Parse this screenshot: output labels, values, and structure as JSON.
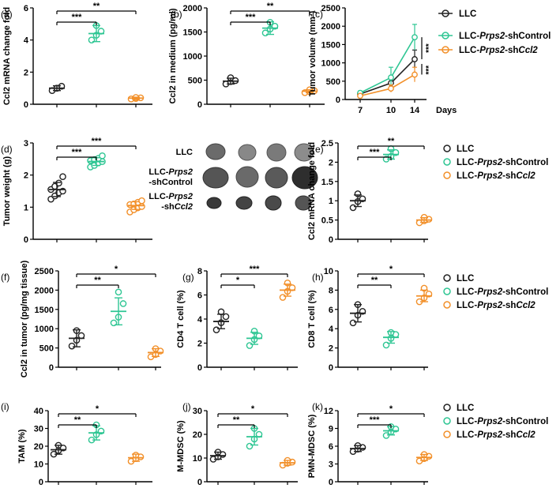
{
  "figure_colors": {
    "LLC": "#222222",
    "shControl": "#2ec693",
    "shCcl2": "#f2902a",
    "axis": "#000000"
  },
  "legend": {
    "LLC": "LLC",
    "shControl": {
      "a": "LLC-",
      "b": "Prps2",
      "c": "-shControl"
    },
    "shCcl2": {
      "a": "LLC-",
      "b": "Prps2",
      "c": "-sh",
      "d": "Ccl2"
    }
  },
  "photo": {
    "row1": "LLC",
    "row2_a": "LLC-",
    "row2_b": "Prps2",
    "row2_c": "-shControl",
    "row3_a": "LLC-",
    "row3_b": "Prps2",
    "row3_c": "-sh",
    "row3_d": "Ccl2"
  },
  "chart_data": [
    {
      "id": "a",
      "panel_label": "(a)",
      "type": "scatter",
      "ylabel": "Ccl2 mRNA change fold",
      "yticks": [
        0,
        2,
        4,
        6
      ],
      "ylim": [
        0,
        6
      ],
      "groups": [
        {
          "name": "LLC",
          "mean": 1.0,
          "sd": 0.15,
          "points": [
            0.85,
            1.0,
            1.12,
            1.0
          ]
        },
        {
          "name": "LLC-Prps2-shControl",
          "mean": 4.4,
          "sd": 0.5,
          "points": [
            4.0,
            4.3,
            4.55,
            4.9
          ]
        },
        {
          "name": "LLC-Prps2-shCcl2",
          "mean": 0.38,
          "sd": 0.06,
          "points": [
            0.33,
            0.36,
            0.4,
            0.42
          ]
        }
      ],
      "significance": [
        {
          "from": 0,
          "to": 1,
          "label": "***"
        },
        {
          "from": 0,
          "to": 2,
          "label": "**"
        }
      ]
    },
    {
      "id": "b",
      "panel_label": "(b)",
      "type": "scatter",
      "ylabel": "Ccl2 in medium (pg/ml)",
      "yticks": [
        0,
        500,
        1000,
        1500,
        2000
      ],
      "ylim": [
        0,
        2000
      ],
      "groups": [
        {
          "name": "LLC",
          "mean": 480,
          "sd": 60,
          "points": [
            420,
            470,
            490,
            550
          ]
        },
        {
          "name": "LLC-Prps2-shControl",
          "mean": 1580,
          "sd": 130,
          "points": [
            1480,
            1560,
            1620,
            1700
          ]
        },
        {
          "name": "LLC-Prps2-shCcl2",
          "mean": 270,
          "sd": 30,
          "points": [
            240,
            260,
            280,
            300
          ]
        }
      ],
      "significance": [
        {
          "from": 0,
          "to": 1,
          "label": "***"
        },
        {
          "from": 0,
          "to": 2,
          "label": "**"
        }
      ]
    },
    {
      "id": "c",
      "panel_label": "(c)",
      "type": "line",
      "ylabel": "Tumor volume (mm³)",
      "xlabel": "Days",
      "x": [
        7,
        10,
        14
      ],
      "yticks": [
        0,
        500,
        1000,
        1500,
        2000,
        2500
      ],
      "ylim": [
        0,
        2500
      ],
      "series": [
        {
          "name": "LLC",
          "values": [
            150,
            450,
            1100
          ],
          "err": [
            40,
            150,
            250
          ]
        },
        {
          "name": "LLC-Prps2-shControl",
          "values": [
            180,
            600,
            1700
          ],
          "err": [
            50,
            280,
            350
          ]
        },
        {
          "name": "LLC-Prps2-shCcl2",
          "values": [
            100,
            300,
            680
          ],
          "err": [
            30,
            100,
            200
          ]
        }
      ],
      "significance": [
        {
          "label": "***"
        },
        {
          "label": "***"
        }
      ]
    },
    {
      "id": "d",
      "panel_label": "(d)",
      "type": "scatter",
      "ylabel": "Tumor weight (g)",
      "yticks": [
        0,
        1,
        2,
        3
      ],
      "ylim": [
        0,
        3
      ],
      "groups": [
        {
          "name": "LLC",
          "mean": 1.55,
          "sd": 0.22,
          "points": [
            1.25,
            1.35,
            1.45,
            1.5,
            1.55,
            1.65,
            1.75,
            1.95
          ]
        },
        {
          "name": "LLC-Prps2-shControl",
          "mean": 2.42,
          "sd": 0.12,
          "points": [
            2.25,
            2.3,
            2.38,
            2.42,
            2.45,
            2.48,
            2.52,
            2.6
          ]
        },
        {
          "name": "LLC-Prps2-shCcl2",
          "mean": 1.05,
          "sd": 0.12,
          "points": [
            0.85,
            0.92,
            0.98,
            1.02,
            1.08,
            1.1,
            1.15,
            1.2
          ]
        }
      ],
      "significance": [
        {
          "from": 0,
          "to": 1,
          "label": "***"
        },
        {
          "from": 0,
          "to": 2,
          "label": "***"
        }
      ]
    },
    {
      "id": "e",
      "panel_label": "(e)",
      "type": "scatter",
      "ylabel": "Ccl2 mRNA change fold",
      "yticks": [
        0.0,
        0.5,
        1.0,
        1.5,
        2.0,
        2.5
      ],
      "ylim": [
        0,
        2.5
      ],
      "groups": [
        {
          "name": "LLC",
          "mean": 1.0,
          "sd": 0.15,
          "points": [
            0.82,
            0.98,
            1.05,
            1.18
          ]
        },
        {
          "name": "LLC-Prps2-shControl",
          "mean": 2.2,
          "sd": 0.12,
          "points": [
            2.08,
            2.15,
            2.25,
            2.35
          ]
        },
        {
          "name": "LLC-Prps2-shCcl2",
          "mean": 0.5,
          "sd": 0.06,
          "points": [
            0.43,
            0.48,
            0.52,
            0.57
          ]
        }
      ],
      "significance": [
        {
          "from": 0,
          "to": 1,
          "label": "***"
        },
        {
          "from": 0,
          "to": 2,
          "label": "**"
        }
      ]
    },
    {
      "id": "f",
      "panel_label": "(f)",
      "type": "scatter",
      "ylabel": "Ccl2 in tumor (pg/mg tissue)",
      "yticks": [
        0,
        500,
        1000,
        1500,
        2000,
        2500
      ],
      "ylim": [
        0,
        2500
      ],
      "groups": [
        {
          "name": "LLC",
          "mean": 750,
          "sd": 220,
          "points": [
            550,
            700,
            820,
            950
          ]
        },
        {
          "name": "LLC-Prps2-shControl",
          "mean": 1450,
          "sd": 350,
          "points": [
            1150,
            1300,
            1650,
            1950
          ]
        },
        {
          "name": "LLC-Prps2-shCcl2",
          "mean": 380,
          "sd": 100,
          "points": [
            270,
            330,
            420,
            480
          ]
        }
      ],
      "significance": [
        {
          "from": 0,
          "to": 1,
          "label": "**"
        },
        {
          "from": 0,
          "to": 2,
          "label": "*"
        }
      ]
    },
    {
      "id": "g",
      "panel_label": "(g)",
      "type": "scatter",
      "ylabel": "CD4 T cell (%)",
      "yticks": [
        0,
        2,
        4,
        6,
        8
      ],
      "ylim": [
        0,
        8
      ],
      "groups": [
        {
          "name": "LLC",
          "mean": 3.8,
          "sd": 0.6,
          "points": [
            3.1,
            3.7,
            4.2,
            4.6
          ]
        },
        {
          "name": "LLC-Prps2-shControl",
          "mean": 2.4,
          "sd": 0.5,
          "points": [
            1.8,
            2.3,
            2.6,
            3.0
          ]
        },
        {
          "name": "LLC-Prps2-shCcl2",
          "mean": 6.4,
          "sd": 0.5,
          "points": [
            5.8,
            6.3,
            6.6,
            7.0
          ]
        }
      ],
      "significance": [
        {
          "from": 0,
          "to": 1,
          "label": "*"
        },
        {
          "from": 0,
          "to": 2,
          "label": "***"
        }
      ]
    },
    {
      "id": "h",
      "panel_label": "(h)",
      "type": "scatter",
      "ylabel": "CD8 T cell (%)",
      "yticks": [
        0,
        2,
        4,
        6,
        8,
        10
      ],
      "ylim": [
        0,
        10
      ],
      "groups": [
        {
          "name": "LLC",
          "mean": 5.6,
          "sd": 0.9,
          "points": [
            4.6,
            5.4,
            5.8,
            6.5
          ]
        },
        {
          "name": "LLC-Prps2-shControl",
          "mean": 3.1,
          "sd": 0.6,
          "points": [
            2.3,
            3.0,
            3.4,
            3.6
          ]
        },
        {
          "name": "LLC-Prps2-shCcl2",
          "mean": 7.4,
          "sd": 0.6,
          "points": [
            6.8,
            7.2,
            7.6,
            8.2
          ]
        }
      ],
      "significance": [
        {
          "from": 0,
          "to": 1,
          "label": "**"
        },
        {
          "from": 0,
          "to": 2,
          "label": "*"
        }
      ]
    },
    {
      "id": "i",
      "panel_label": "(i)",
      "type": "scatter",
      "ylabel": "TAM (%)",
      "yticks": [
        0,
        10,
        20,
        30,
        40
      ],
      "ylim": [
        0,
        40
      ],
      "groups": [
        {
          "name": "LLC",
          "mean": 18,
          "sd": 2.5,
          "points": [
            15.5,
            17.5,
            19,
            20.5
          ]
        },
        {
          "name": "LLC-Prps2-shControl",
          "mean": 27.5,
          "sd": 4,
          "points": [
            23.5,
            26.5,
            28.5,
            32
          ]
        },
        {
          "name": "LLC-Prps2-shCcl2",
          "mean": 13.5,
          "sd": 2,
          "points": [
            11.5,
            13,
            14,
            15
          ]
        }
      ],
      "significance": [
        {
          "from": 0,
          "to": 1,
          "label": "**"
        },
        {
          "from": 0,
          "to": 2,
          "label": "*"
        }
      ]
    },
    {
      "id": "j",
      "panel_label": "(j)",
      "type": "scatter",
      "ylabel": "M-MDSC (%)",
      "yticks": [
        0,
        10,
        20,
        30
      ],
      "ylim": [
        0,
        30
      ],
      "groups": [
        {
          "name": "LLC",
          "mean": 11,
          "sd": 1.5,
          "points": [
            9.5,
            10.5,
            11.5,
            12.5
          ]
        },
        {
          "name": "LLC-Prps2-shControl",
          "mean": 19,
          "sd": 3.5,
          "points": [
            15,
            18,
            20,
            22.5
          ]
        },
        {
          "name": "LLC-Prps2-shCcl2",
          "mean": 8,
          "sd": 1,
          "points": [
            7,
            7.8,
            8.3,
            9
          ]
        }
      ],
      "significance": [
        {
          "from": 0,
          "to": 1,
          "label": "**"
        },
        {
          "from": 0,
          "to": 2,
          "label": "*"
        }
      ]
    },
    {
      "id": "k",
      "panel_label": "(k)",
      "type": "scatter",
      "ylabel": "PMN-MDSC (%)",
      "yticks": [
        0,
        3,
        6,
        9,
        12
      ],
      "ylim": [
        0,
        12
      ],
      "groups": [
        {
          "name": "LLC",
          "mean": 5.6,
          "sd": 0.5,
          "points": [
            5.1,
            5.5,
            5.8,
            6.1
          ]
        },
        {
          "name": "LLC-Prps2-shControl",
          "mean": 8.6,
          "sd": 0.7,
          "points": [
            7.8,
            8.4,
            8.9,
            9.3
          ]
        },
        {
          "name": "LLC-Prps2-shCcl2",
          "mean": 4.1,
          "sd": 0.5,
          "points": [
            3.5,
            3.9,
            4.3,
            4.6
          ]
        }
      ],
      "significance": [
        {
          "from": 0,
          "to": 1,
          "label": "***"
        },
        {
          "from": 0,
          "to": 2,
          "label": "*"
        }
      ]
    }
  ]
}
